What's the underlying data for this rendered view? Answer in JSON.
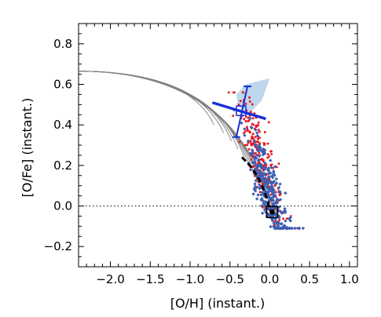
{
  "chart_data": {
    "type": "scatter",
    "title": "",
    "xlabel": "[O/H] (instant.)",
    "ylabel": "[O/Fe] (instant.)",
    "xlim": [
      -2.4,
      1.1
    ],
    "ylim": [
      -0.3,
      0.9
    ],
    "x_ticks": [
      -2.0,
      -1.5,
      -1.0,
      -0.5,
      0.0,
      0.5,
      1.0
    ],
    "x_tick_labels": [
      "−2.0",
      "−1.5",
      "−1.0",
      "−0.5",
      "0.0",
      "0.5",
      "1.0"
    ],
    "y_ticks": [
      -0.2,
      0.0,
      0.2,
      0.4,
      0.6,
      0.8
    ],
    "y_tick_labels": [
      "−0.2",
      "0.0",
      "0.2",
      "0.4",
      "0.6",
      "0.8"
    ],
    "grid": false,
    "legend": "none",
    "reference_line": {
      "y": 0.0,
      "style": "dotted"
    },
    "colors": {
      "red_points": "#e8141c",
      "blue_points": "#3d5fb0",
      "model_tracks": "#808080",
      "shaded_region": "#a9c9e6",
      "error_bar": "#1630d6",
      "dashed_track": "#000000",
      "solar_box": "#000000"
    },
    "model_tracks": {
      "count": 12,
      "start": [
        -2.4,
        0.665
      ],
      "ends": [
        {
          "x": -0.7,
          "y": 0.4
        },
        {
          "x": -0.58,
          "y": 0.36
        },
        {
          "x": -0.48,
          "y": 0.32
        },
        {
          "x": -0.4,
          "y": 0.28
        },
        {
          "x": -0.32,
          "y": 0.24
        },
        {
          "x": -0.26,
          "y": 0.2
        },
        {
          "x": -0.2,
          "y": 0.16
        },
        {
          "x": -0.14,
          "y": 0.12
        },
        {
          "x": -0.08,
          "y": 0.08
        },
        {
          "x": -0.04,
          "y": 0.04
        },
        {
          "x": 0.0,
          "y": 0.0
        },
        {
          "x": 0.05,
          "y": -0.03
        }
      ]
    },
    "dashed_track": {
      "from": [
        -0.35,
        0.24
      ],
      "to": [
        0.0,
        -0.02
      ]
    },
    "shaded_region": [
      [
        -0.42,
        0.55
      ],
      [
        -0.3,
        0.6
      ],
      [
        -0.1,
        0.62
      ],
      [
        0.0,
        0.63
      ],
      [
        -0.1,
        0.52
      ],
      [
        -0.25,
        0.46
      ],
      [
        -0.4,
        0.49
      ]
    ],
    "highlight_point": {
      "x": -0.36,
      "y": 0.47,
      "x_error_segment": [
        [
          -0.72,
          0.51
        ],
        [
          -0.05,
          0.43
        ]
      ],
      "y_error_segment": [
        [
          -0.42,
          0.34
        ],
        [
          -0.28,
          0.59
        ]
      ]
    },
    "solar_reference": {
      "x": 0.03,
      "y": -0.03
    },
    "red_seed": 11,
    "blue_seed": 29,
    "red_cluster": {
      "n": 230,
      "x_center": -0.12,
      "y_center": 0.22,
      "x_spread": 0.22,
      "y_spread": 0.14
    },
    "blue_cluster": {
      "n": 330,
      "x_center": 0.0,
      "y_center": 0.06,
      "x_spread": 0.22,
      "y_spread": 0.12
    }
  }
}
